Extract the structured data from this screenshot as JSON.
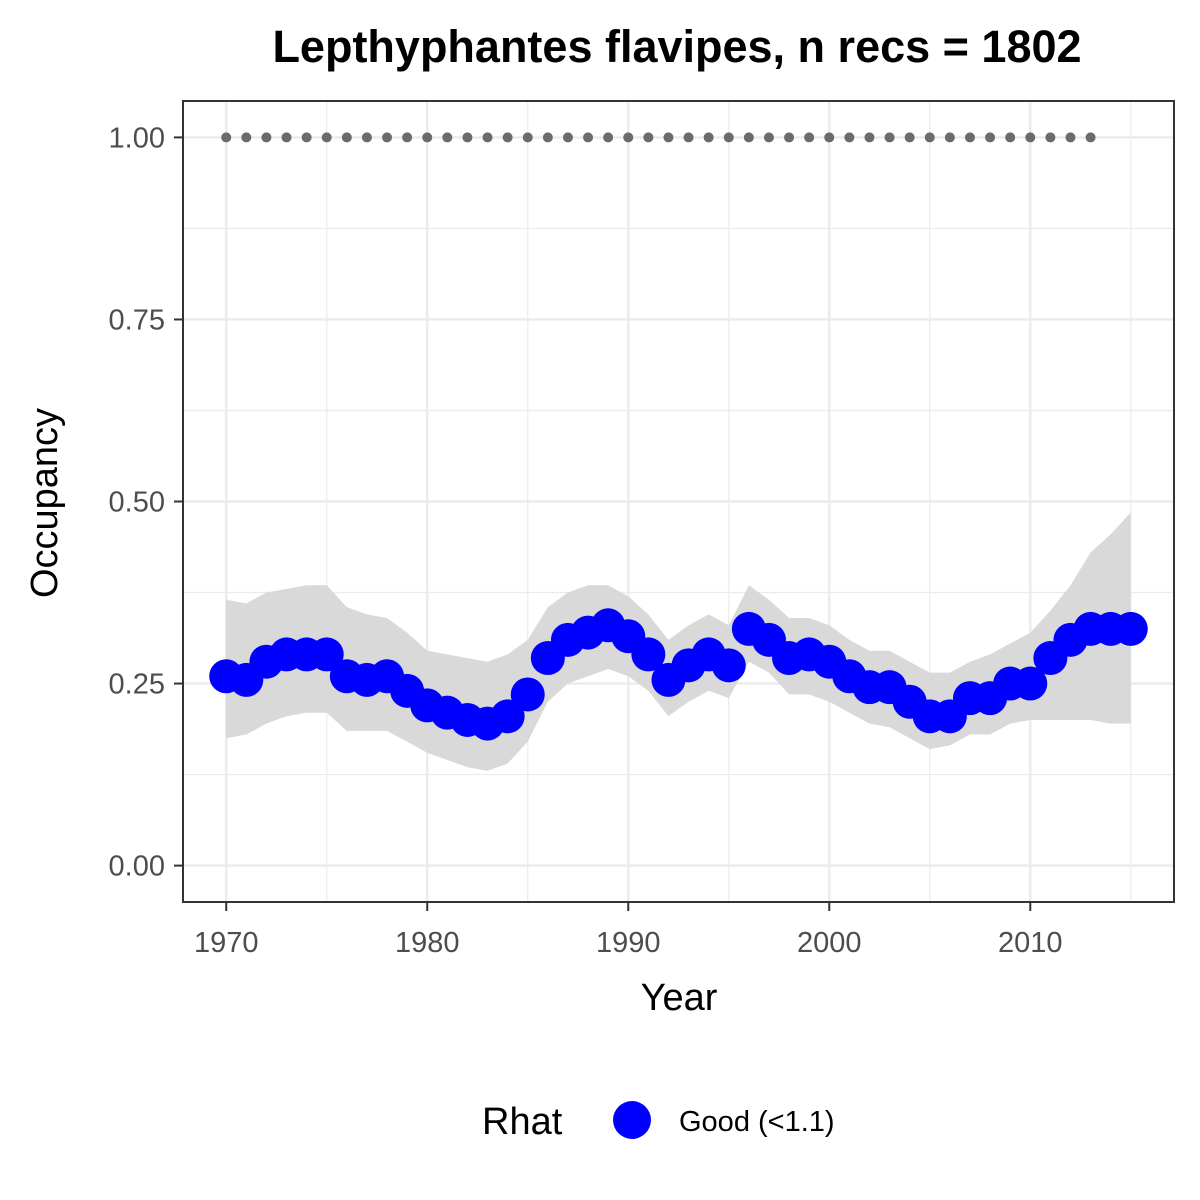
{
  "chart_data": {
    "type": "line",
    "title": "Lepthyphantes flavipes, n recs = 1802",
    "xlabel": "Year",
    "ylabel": "Occupancy",
    "xlim": [
      1967.85,
      2017.15
    ],
    "ylim": [
      -0.05,
      1.05
    ],
    "x_ticks": [
      1970,
      1980,
      1990,
      2000,
      2010
    ],
    "x_tick_labels": [
      "1970",
      "1980",
      "1990",
      "2000",
      "2010"
    ],
    "y_ticks": [
      0,
      0.25,
      0.5,
      0.75,
      1.0
    ],
    "y_tick_labels": [
      "0.00",
      "0.25",
      "0.50",
      "0.75",
      "1.00"
    ],
    "grid": true,
    "legend": {
      "title": "Rhat",
      "position": "bottom",
      "entries": [
        {
          "label": "Good (<1.1)",
          "color": "#0000ff"
        }
      ]
    },
    "colors": {
      "points": "#0000ff",
      "ribbon": "#d9d9d9",
      "reference_dots": "#6b6b6b",
      "grid": "#ebebeb",
      "panel_border": "#333333"
    },
    "series": [
      {
        "name": "Good (<1.1)",
        "x": [
          1970,
          1971,
          1972,
          1973,
          1974,
          1975,
          1976,
          1977,
          1978,
          1979,
          1980,
          1981,
          1982,
          1983,
          1984,
          1985,
          1986,
          1987,
          1988,
          1989,
          1990,
          1991,
          1992,
          1993,
          1994,
          1995,
          1996,
          1997,
          1998,
          1999,
          2000,
          2001,
          2002,
          2003,
          2004,
          2005,
          2006,
          2007,
          2008,
          2009,
          2010,
          2011,
          2012,
          2013,
          2014,
          2015
        ],
        "y": [
          0.26,
          0.255,
          0.28,
          0.29,
          0.29,
          0.29,
          0.26,
          0.255,
          0.26,
          0.24,
          0.22,
          0.21,
          0.2,
          0.195,
          0.205,
          0.235,
          0.285,
          0.31,
          0.32,
          0.33,
          0.315,
          0.29,
          0.255,
          0.275,
          0.29,
          0.275,
          0.325,
          0.31,
          0.285,
          0.29,
          0.28,
          0.26,
          0.245,
          0.245,
          0.225,
          0.205,
          0.205,
          0.23,
          0.23,
          0.25,
          0.25,
          0.285,
          0.31,
          0.325,
          0.325,
          0.325
        ],
        "lower": [
          0.175,
          0.18,
          0.195,
          0.205,
          0.21,
          0.21,
          0.185,
          0.185,
          0.185,
          0.17,
          0.155,
          0.145,
          0.135,
          0.13,
          0.14,
          0.17,
          0.225,
          0.25,
          0.26,
          0.27,
          0.26,
          0.24,
          0.205,
          0.225,
          0.24,
          0.23,
          0.28,
          0.265,
          0.235,
          0.235,
          0.225,
          0.21,
          0.195,
          0.19,
          0.175,
          0.16,
          0.165,
          0.18,
          0.18,
          0.195,
          0.2,
          0.2,
          0.2,
          0.2,
          0.195,
          0.195
        ],
        "upper": [
          0.365,
          0.36,
          0.375,
          0.38,
          0.385,
          0.385,
          0.355,
          0.345,
          0.34,
          0.32,
          0.295,
          0.29,
          0.285,
          0.28,
          0.29,
          0.31,
          0.355,
          0.375,
          0.385,
          0.385,
          0.37,
          0.345,
          0.31,
          0.33,
          0.345,
          0.33,
          0.385,
          0.365,
          0.34,
          0.34,
          0.33,
          0.31,
          0.295,
          0.295,
          0.28,
          0.265,
          0.265,
          0.28,
          0.29,
          0.305,
          0.32,
          0.35,
          0.385,
          0.43,
          0.455,
          0.485
        ]
      }
    ],
    "reference_dots": {
      "y": 1.0,
      "x": [
        1970,
        1971,
        1972,
        1973,
        1974,
        1975,
        1976,
        1977,
        1978,
        1979,
        1980,
        1981,
        1982,
        1983,
        1984,
        1985,
        1986,
        1987,
        1988,
        1989,
        1990,
        1991,
        1992,
        1993,
        1994,
        1995,
        1996,
        1997,
        1998,
        1999,
        2000,
        2001,
        2002,
        2003,
        2004,
        2005,
        2006,
        2007,
        2008,
        2009,
        2010,
        2011,
        2012,
        2013
      ]
    }
  }
}
